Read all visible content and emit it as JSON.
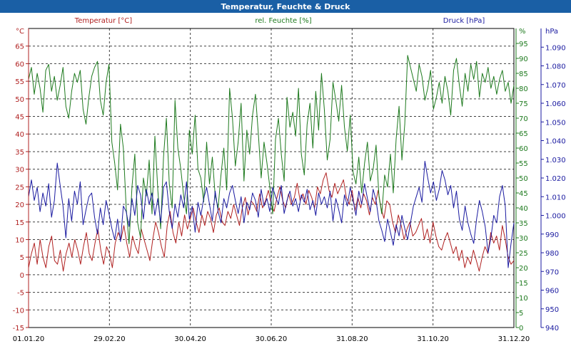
{
  "window": {
    "title": "Temperatur, Feuchte & Druck"
  },
  "colors": {
    "temperature": "#b02020",
    "humidity": "#1e7a1e",
    "pressure": "#1a1aa0",
    "titlebar": "#1a5fa5"
  },
  "chart_data": {
    "type": "line",
    "title": "Temperatur, Feuchte & Druck",
    "grid": true,
    "x_ticks": [
      "01.01.20",
      "29.02.20",
      "30.04.20",
      "30.06.20",
      "31.08.20",
      "31.10.20",
      "31.12.20"
    ],
    "axes": {
      "temperature": {
        "label": "Temperatur [°C]",
        "unit": "°C",
        "range": [
          -15,
          70
        ],
        "ticks": [
          -15,
          -10,
          -5,
          0,
          5,
          10,
          15,
          20,
          25,
          30,
          35,
          40,
          45,
          50,
          55,
          60,
          65
        ]
      },
      "humidity": {
        "label": "rel. Feuchte [%]",
        "unit": "%",
        "range": [
          0,
          100
        ],
        "ticks": [
          0,
          5,
          10,
          15,
          20,
          25,
          30,
          35,
          40,
          45,
          50,
          55,
          60,
          65,
          70,
          75,
          80,
          85,
          90,
          95
        ]
      },
      "pressure": {
        "label": "Druck [hPa]",
        "unit": "hPa",
        "range": [
          940,
          1100
        ],
        "ticks": [
          "940",
          "950",
          "960",
          "970",
          "980",
          "990",
          "1.000",
          "1.010",
          "1.020",
          "1.030",
          "1.040",
          "1.050",
          "1.060",
          "1.070",
          "1.080",
          "1.090"
        ]
      }
    },
    "series": [
      {
        "name": "Temperatur [°C]",
        "axis": "temperature",
        "color": "#b02020",
        "x_start": "01.01.20",
        "x_end": "31.12.20",
        "values": [
          2,
          6,
          9,
          3,
          10,
          5,
          2,
          8,
          11,
          4,
          3,
          7,
          1,
          6,
          9,
          5,
          10,
          7,
          3,
          8,
          12,
          6,
          4,
          9,
          13,
          7,
          3,
          8,
          6,
          2,
          9,
          12,
          10,
          14,
          9,
          5,
          11,
          8,
          6,
          13,
          10,
          7,
          4,
          10,
          15,
          12,
          8,
          5,
          14,
          18,
          12,
          9,
          15,
          11,
          17,
          13,
          16,
          19,
          15,
          12,
          17,
          14,
          18,
          16,
          12,
          17,
          19,
          15,
          14,
          18,
          16,
          20,
          17,
          14,
          19,
          22,
          17,
          21,
          20,
          18,
          23,
          19,
          21,
          24,
          20,
          18,
          22,
          25,
          21,
          19,
          23,
          20,
          22,
          26,
          21,
          23,
          20,
          24,
          22,
          19,
          25,
          23,
          27,
          29,
          24,
          22,
          26,
          23,
          25,
          27,
          22,
          20,
          24,
          18,
          22,
          19,
          23,
          21,
          17,
          22,
          20,
          24,
          19,
          16,
          21,
          20,
          15,
          12,
          17,
          14,
          10,
          13,
          15,
          11,
          12,
          14,
          16,
          10,
          13,
          9,
          15,
          11,
          8,
          7,
          10,
          12,
          9,
          6,
          8,
          4,
          7,
          2,
          5,
          3,
          7,
          4,
          1,
          5,
          8,
          6,
          12,
          9,
          11,
          7,
          14,
          10,
          5,
          3,
          4
        ]
      },
      {
        "name": "rel. Feuchte [%]",
        "axis": "humidity",
        "color": "#1e7a1e",
        "x_start": "01.01.20",
        "x_end": "31.12.20",
        "values": [
          83,
          87,
          78,
          85,
          80,
          72,
          86,
          88,
          79,
          84,
          76,
          81,
          87,
          74,
          70,
          79,
          85,
          82,
          86,
          73,
          68,
          77,
          84,
          87,
          89,
          76,
          71,
          82,
          88,
          62,
          55,
          46,
          68,
          60,
          40,
          28,
          47,
          58,
          35,
          30,
          50,
          44,
          56,
          38,
          64,
          46,
          33,
          57,
          70,
          48,
          40,
          76,
          60,
          53,
          44,
          38,
          66,
          58,
          71,
          53,
          50,
          42,
          62,
          48,
          57,
          44,
          40,
          51,
          60,
          46,
          80,
          70,
          54,
          62,
          75,
          49,
          66,
          58,
          71,
          78,
          65,
          50,
          62,
          55,
          47,
          38,
          63,
          70,
          58,
          49,
          77,
          67,
          72,
          64,
          80,
          58,
          51,
          68,
          75,
          60,
          79,
          66,
          85,
          73,
          56,
          63,
          82,
          76,
          69,
          81,
          67,
          59,
          71,
          52,
          48,
          57,
          45,
          55,
          62,
          49,
          53,
          61,
          44,
          38,
          51,
          47,
          58,
          45,
          63,
          74,
          56,
          68,
          91,
          87,
          83,
          79,
          88,
          84,
          76,
          80,
          86,
          73,
          77,
          82,
          75,
          84,
          79,
          71,
          86,
          90,
          81,
          74,
          85,
          79,
          88,
          83,
          89,
          77,
          85,
          82,
          87,
          80,
          84,
          78,
          83,
          86,
          79,
          82,
          75,
          81
        ]
      },
      {
        "name": "Druck [hPa]",
        "axis": "pressure",
        "color": "#1a1aa0",
        "x_start": "01.01.20",
        "x_end": "31.12.20",
        "values": [
          1010,
          1019,
          1008,
          1015,
          1002,
          1012,
          1005,
          1017,
          999,
          1008,
          1028,
          1016,
          1005,
          988,
          1009,
          997,
          1013,
          1006,
          1018,
          995,
          1003,
          1010,
          1012,
          999,
          990,
          1004,
          995,
          1008,
          1001,
          993,
          987,
          998,
          986,
          1005,
          1002,
          994,
          1009,
          1000,
          1016,
          1011,
          998,
          1014,
          1006,
          1012,
          1000,
          1009,
          996,
          1015,
          1018,
          1002,
          993,
          1006,
          999,
          1011,
          1004,
          1018,
          998,
          1005,
          991,
          1007,
          1000,
          1009,
          1015,
          1006,
          997,
          1013,
          1002,
          996,
          1009,
          1004,
          1012,
          1016,
          1008,
          1001,
          1010,
          996,
          1007,
          1003,
          1012,
          1008,
          999,
          1014,
          1005,
          1009,
          1002,
          1015,
          1010,
          1006,
          1016,
          1001,
          1008,
          1013,
          1005,
          1009,
          1002,
          1011,
          1007,
          1014,
          1003,
          1008,
          1000,
          1012,
          1006,
          1010,
          1004,
          1013,
          997,
          1009,
          1003,
          996,
          1011,
          1005,
          1015,
          1008,
          1000,
          1013,
          1006,
          1017,
          1009,
          1002,
          1014,
          1008,
          997,
          992,
          986,
          998,
          991,
          984,
          995,
          989,
          1000,
          993,
          987,
          996,
          1005,
          1010,
          1015,
          1007,
          1029,
          1020,
          1012,
          1018,
          1008,
          1014,
          1024,
          1019,
          1011,
          1016,
          1004,
          1013,
          998,
          992,
          1005,
          996,
          990,
          985,
          998,
          1008,
          1002,
          994,
          980,
          988,
          1000,
          996,
          1010,
          1016,
          1005,
          972,
          985,
          996
        ]
      }
    ]
  }
}
